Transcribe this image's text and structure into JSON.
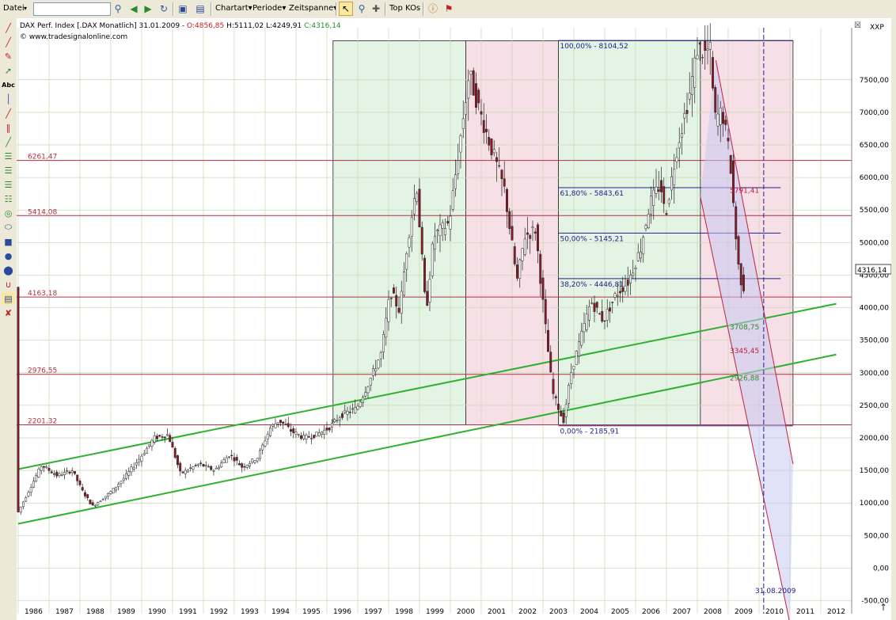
{
  "toolbar": {
    "file_menu": "Datei",
    "search_value": "",
    "chartart": "Chartart",
    "periode": "Periode",
    "zeitspanne": "Zeitspanne",
    "top_kos": "Top KOs"
  },
  "chart": {
    "header_title": "DAX Perf. Index [.DAX Monatlich] 31.01.2009 - ",
    "header_open": "O:4856,85",
    "header_hlc": " H:5111,02 L:4249,91 ",
    "header_close": "C:4316,14",
    "copyright": "© www.tradesignalonline.com",
    "price_tag": "4316,14",
    "xxp_label": "XXP",
    "date_marker": "31.08.2009",
    "colors": {
      "grid": "#c8d8b0",
      "hline": "#b03040",
      "fib": "#20208a",
      "channel": "#30b030",
      "green_zone": "#e4f4e4",
      "red_zone": "#f6dfe6",
      "candle_up": "#ffffff",
      "candle_down": "#8a1a2a"
    }
  },
  "chart_data": {
    "type": "candlestick",
    "years": [
      "1986",
      "1987",
      "1988",
      "1989",
      "1990",
      "1991",
      "1992",
      "1993",
      "1994",
      "1995",
      "1996",
      "1997",
      "1998",
      "1999",
      "2000",
      "2001",
      "2002",
      "2003",
      "2004",
      "2005",
      "2006",
      "2007",
      "2008",
      "2009",
      "2010",
      "2011",
      "2012"
    ],
    "yticks": [
      "7500,00",
      "7000,00",
      "6500,00",
      "6000,00",
      "5500,00",
      "5000,00",
      "4500,00",
      "4000,00",
      "3500,00",
      "3000,00",
      "2500,00",
      "2000,00",
      "1500,00",
      "1000,00",
      "500,00",
      "0,00",
      "-500,00"
    ],
    "ylim": [
      -700,
      8300
    ],
    "price_path": [
      [
        1985.5,
        820
      ],
      [
        1986.0,
        1300
      ],
      [
        1986.3,
        1580
      ],
      [
        1986.8,
        1420
      ],
      [
        1987.3,
        1500
      ],
      [
        1987.6,
        1200
      ],
      [
        1987.95,
        950
      ],
      [
        1988.5,
        1150
      ],
      [
        1989.0,
        1400
      ],
      [
        1989.5,
        1700
      ],
      [
        1989.95,
        2000
      ],
      [
        1990.4,
        2050
      ],
      [
        1990.8,
        1450
      ],
      [
        1991.4,
        1600
      ],
      [
        1991.9,
        1500
      ],
      [
        1992.4,
        1750
      ],
      [
        1992.8,
        1550
      ],
      [
        1993.3,
        1700
      ],
      [
        1993.7,
        2150
      ],
      [
        1994.0,
        2270
      ],
      [
        1994.4,
        2100
      ],
      [
        1994.8,
        2000
      ],
      [
        1995.2,
        2050
      ],
      [
        1995.6,
        2150
      ],
      [
        1996.0,
        2350
      ],
      [
        1996.5,
        2450
      ],
      [
        1996.9,
        2850
      ],
      [
        1997.3,
        3300
      ],
      [
        1997.6,
        4250
      ],
      [
        1997.9,
        3950
      ],
      [
        1998.15,
        5000
      ],
      [
        1998.45,
        5900
      ],
      [
        1998.75,
        3900
      ],
      [
        1999.0,
        5100
      ],
      [
        1999.5,
        5300
      ],
      [
        1999.95,
        6900
      ],
      [
        2000.15,
        7600
      ],
      [
        2000.5,
        7000
      ],
      [
        2000.9,
        6400
      ],
      [
        2001.3,
        5800
      ],
      [
        2001.7,
        4400
      ],
      [
        2001.95,
        5100
      ],
      [
        2002.3,
        5200
      ],
      [
        2002.6,
        3800
      ],
      [
        2002.85,
        2700
      ],
      [
        2003.05,
        2450
      ],
      [
        2003.2,
        2250
      ],
      [
        2003.45,
        3000
      ],
      [
        2003.8,
        3600
      ],
      [
        2004.1,
        4100
      ],
      [
        2004.5,
        3800
      ],
      [
        2004.9,
        4200
      ],
      [
        2005.3,
        4400
      ],
      [
        2005.7,
        4900
      ],
      [
        2006.0,
        5600
      ],
      [
        2006.35,
        5900
      ],
      [
        2006.5,
        5400
      ],
      [
        2006.9,
        6500
      ],
      [
        2007.3,
        7300
      ],
      [
        2007.55,
        8000
      ],
      [
        2007.8,
        7900
      ],
      [
        2007.95,
        8000
      ],
      [
        2008.1,
        6900
      ],
      [
        2008.35,
        7000
      ],
      [
        2008.6,
        6300
      ],
      [
        2008.85,
        4700
      ],
      [
        2009.0,
        4316
      ]
    ],
    "horizontal_levels": [
      {
        "value": 6261.47,
        "label": "6261,47"
      },
      {
        "value": 5414.08,
        "label": "5414,08"
      },
      {
        "value": 4163.18,
        "label": "4163,18"
      },
      {
        "value": 2976.55,
        "label": "2976,55"
      },
      {
        "value": 2201.32,
        "label": "2201,32"
      }
    ],
    "fibonacci": [
      {
        "value": 8104.52,
        "label": "100,00% - 8104,52"
      },
      {
        "value": 5843.61,
        "label": "61,80% - 5843,61"
      },
      {
        "value": 5145.21,
        "label": "50,00% - 5145,21"
      },
      {
        "value": 4446.81,
        "label": "38,20% - 4446,81"
      },
      {
        "value": 2185.91,
        "label": "0,00% - 2185,91"
      }
    ],
    "annotations": [
      {
        "x": 2008.5,
        "y": 5800,
        "label": "5791,41"
      },
      {
        "x": 2008.5,
        "y": 3700,
        "label": "3708,75"
      },
      {
        "x": 2008.5,
        "y": 3340,
        "label": "3345,45"
      },
      {
        "x": 2008.5,
        "y": 2920,
        "label": "2926,88"
      }
    ],
    "channel_upper": [
      [
        1985.5,
        1520
      ],
      [
        2012.0,
        4060
      ]
    ],
    "channel_lower": [
      [
        1985.5,
        680
      ],
      [
        2012.0,
        3280
      ]
    ],
    "zones": [
      {
        "from": 1995.7,
        "to": 2000.0,
        "kind": "green",
        "top": 8100,
        "bottom": 2200
      },
      {
        "from": 2000.0,
        "to": 2003.0,
        "kind": "red",
        "top": 8100,
        "bottom": 2200
      },
      {
        "from": 2003.0,
        "to": 2007.6,
        "kind": "green",
        "top": 8100,
        "bottom": 2200
      },
      {
        "from": 2007.6,
        "to": 2010.6,
        "kind": "red",
        "top": 8100,
        "bottom": 2200
      }
    ]
  }
}
